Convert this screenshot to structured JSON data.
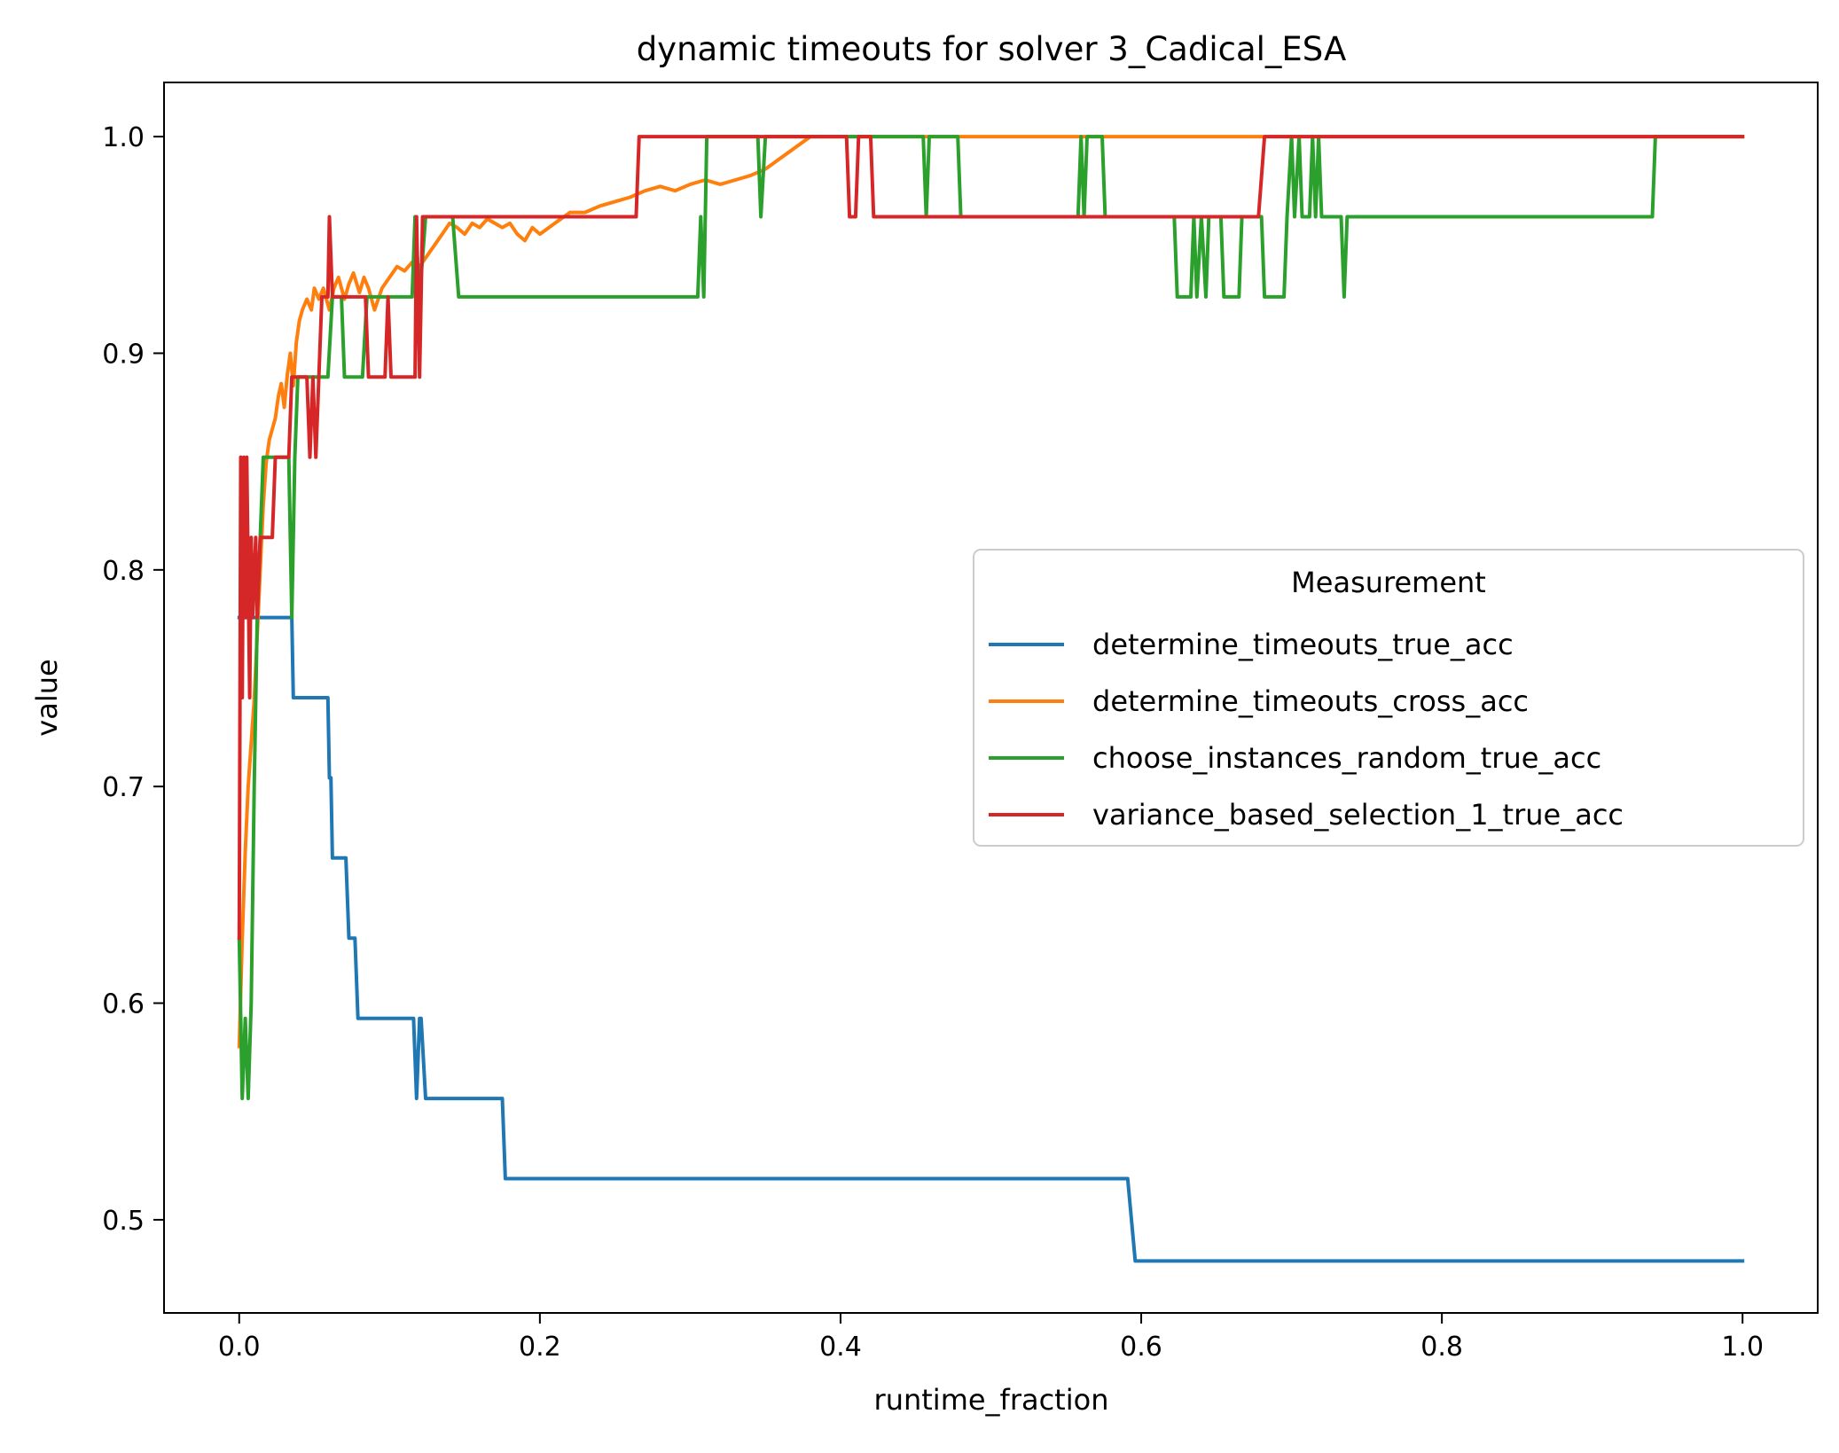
{
  "chart_data": {
    "type": "line",
    "title": "dynamic timeouts for solver 3_Cadical_ESA",
    "xlabel": "runtime_fraction",
    "ylabel": "value",
    "xlim": [
      -0.05,
      1.05
    ],
    "ylim": [
      0.457,
      1.025
    ],
    "xticks": [
      0.0,
      0.2,
      0.4,
      0.6,
      0.8,
      1.0
    ],
    "xtick_labels": [
      "0.0",
      "0.2",
      "0.4",
      "0.6",
      "0.8",
      "1.0"
    ],
    "yticks": [
      0.5,
      0.6,
      0.7,
      0.8,
      0.9,
      1.0
    ],
    "ytick_labels": [
      "0.5",
      "0.6",
      "0.7",
      "0.8",
      "0.9",
      "1.0"
    ],
    "grid": false,
    "legend": {
      "title": "Measurement",
      "position": "center-right"
    },
    "series": [
      {
        "name": "determine_timeouts_true_acc",
        "color": "#1f77b4",
        "points": [
          [
            0.0,
            0.778
          ],
          [
            0.035,
            0.778
          ],
          [
            0.036,
            0.741
          ],
          [
            0.059,
            0.741
          ],
          [
            0.06,
            0.704
          ],
          [
            0.061,
            0.704
          ],
          [
            0.062,
            0.667
          ],
          [
            0.071,
            0.667
          ],
          [
            0.073,
            0.63
          ],
          [
            0.077,
            0.63
          ],
          [
            0.079,
            0.593
          ],
          [
            0.116,
            0.593
          ],
          [
            0.118,
            0.556
          ],
          [
            0.12,
            0.593
          ],
          [
            0.121,
            0.593
          ],
          [
            0.124,
            0.556
          ],
          [
            0.175,
            0.556
          ],
          [
            0.177,
            0.519
          ],
          [
            0.591,
            0.519
          ],
          [
            0.596,
            0.481
          ],
          [
            1.0,
            0.481
          ]
        ]
      },
      {
        "name": "determine_timeouts_cross_acc",
        "color": "#ff7f0e",
        "points": [
          [
            0.0,
            0.58
          ],
          [
            0.002,
            0.63
          ],
          [
            0.004,
            0.67
          ],
          [
            0.006,
            0.7
          ],
          [
            0.008,
            0.72
          ],
          [
            0.01,
            0.74
          ],
          [
            0.012,
            0.77
          ],
          [
            0.014,
            0.8
          ],
          [
            0.016,
            0.83
          ],
          [
            0.018,
            0.85
          ],
          [
            0.02,
            0.86
          ],
          [
            0.022,
            0.865
          ],
          [
            0.024,
            0.87
          ],
          [
            0.026,
            0.88
          ],
          [
            0.028,
            0.886
          ],
          [
            0.03,
            0.875
          ],
          [
            0.032,
            0.89
          ],
          [
            0.034,
            0.9
          ],
          [
            0.036,
            0.885
          ],
          [
            0.038,
            0.905
          ],
          [
            0.04,
            0.915
          ],
          [
            0.042,
            0.92
          ],
          [
            0.045,
            0.925
          ],
          [
            0.048,
            0.92
          ],
          [
            0.05,
            0.93
          ],
          [
            0.053,
            0.925
          ],
          [
            0.056,
            0.93
          ],
          [
            0.06,
            0.92
          ],
          [
            0.063,
            0.93
          ],
          [
            0.066,
            0.935
          ],
          [
            0.07,
            0.925
          ],
          [
            0.073,
            0.932
          ],
          [
            0.076,
            0.937
          ],
          [
            0.08,
            0.928
          ],
          [
            0.083,
            0.935
          ],
          [
            0.086,
            0.93
          ],
          [
            0.09,
            0.92
          ],
          [
            0.095,
            0.93
          ],
          [
            0.1,
            0.935
          ],
          [
            0.105,
            0.94
          ],
          [
            0.11,
            0.938
          ],
          [
            0.115,
            0.942
          ],
          [
            0.12,
            0.94
          ],
          [
            0.125,
            0.945
          ],
          [
            0.13,
            0.95
          ],
          [
            0.135,
            0.955
          ],
          [
            0.14,
            0.96
          ],
          [
            0.145,
            0.958
          ],
          [
            0.15,
            0.955
          ],
          [
            0.155,
            0.96
          ],
          [
            0.16,
            0.958
          ],
          [
            0.165,
            0.962
          ],
          [
            0.17,
            0.96
          ],
          [
            0.175,
            0.958
          ],
          [
            0.18,
            0.96
          ],
          [
            0.185,
            0.955
          ],
          [
            0.19,
            0.952
          ],
          [
            0.195,
            0.958
          ],
          [
            0.2,
            0.955
          ],
          [
            0.21,
            0.96
          ],
          [
            0.22,
            0.965
          ],
          [
            0.23,
            0.965
          ],
          [
            0.24,
            0.968
          ],
          [
            0.25,
            0.97
          ],
          [
            0.26,
            0.972
          ],
          [
            0.27,
            0.975
          ],
          [
            0.28,
            0.977
          ],
          [
            0.29,
            0.975
          ],
          [
            0.3,
            0.978
          ],
          [
            0.31,
            0.98
          ],
          [
            0.32,
            0.978
          ],
          [
            0.33,
            0.98
          ],
          [
            0.34,
            0.982
          ],
          [
            0.35,
            0.985
          ],
          [
            0.36,
            0.99
          ],
          [
            0.37,
            0.995
          ],
          [
            0.38,
            1.0
          ],
          [
            1.0,
            1.0
          ]
        ]
      },
      {
        "name": "choose_instances_random_true_acc",
        "color": "#2ca02c",
        "points": [
          [
            0.0,
            0.63
          ],
          [
            0.002,
            0.556
          ],
          [
            0.004,
            0.593
          ],
          [
            0.006,
            0.556
          ],
          [
            0.008,
            0.6
          ],
          [
            0.01,
            0.7
          ],
          [
            0.012,
            0.778
          ],
          [
            0.014,
            0.815
          ],
          [
            0.016,
            0.852
          ],
          [
            0.033,
            0.852
          ],
          [
            0.035,
            0.778
          ],
          [
            0.037,
            0.852
          ],
          [
            0.039,
            0.889
          ],
          [
            0.059,
            0.889
          ],
          [
            0.062,
            0.926
          ],
          [
            0.068,
            0.926
          ],
          [
            0.07,
            0.889
          ],
          [
            0.082,
            0.889
          ],
          [
            0.085,
            0.926
          ],
          [
            0.115,
            0.926
          ],
          [
            0.117,
            0.963
          ],
          [
            0.12,
            0.926
          ],
          [
            0.124,
            0.963
          ],
          [
            0.142,
            0.963
          ],
          [
            0.146,
            0.926
          ],
          [
            0.305,
            0.926
          ],
          [
            0.307,
            0.963
          ],
          [
            0.309,
            0.926
          ],
          [
            0.311,
            1.0
          ],
          [
            0.345,
            1.0
          ],
          [
            0.347,
            0.963
          ],
          [
            0.35,
            1.0
          ],
          [
            0.455,
            1.0
          ],
          [
            0.457,
            0.963
          ],
          [
            0.459,
            1.0
          ],
          [
            0.478,
            1.0
          ],
          [
            0.48,
            0.963
          ],
          [
            0.558,
            0.963
          ],
          [
            0.56,
            1.0
          ],
          [
            0.562,
            0.963
          ],
          [
            0.564,
            1.0
          ],
          [
            0.574,
            1.0
          ],
          [
            0.576,
            0.963
          ],
          [
            0.622,
            0.963
          ],
          [
            0.624,
            0.926
          ],
          [
            0.633,
            0.926
          ],
          [
            0.635,
            0.963
          ],
          [
            0.637,
            0.926
          ],
          [
            0.64,
            0.963
          ],
          [
            0.643,
            0.926
          ],
          [
            0.645,
            0.963
          ],
          [
            0.653,
            0.963
          ],
          [
            0.655,
            0.926
          ],
          [
            0.665,
            0.926
          ],
          [
            0.667,
            0.963
          ],
          [
            0.68,
            0.963
          ],
          [
            0.682,
            0.926
          ],
          [
            0.695,
            0.926
          ],
          [
            0.697,
            0.963
          ],
          [
            0.7,
            1.0
          ],
          [
            0.702,
            0.963
          ],
          [
            0.705,
            1.0
          ],
          [
            0.707,
            0.963
          ],
          [
            0.712,
            0.963
          ],
          [
            0.714,
            1.0
          ],
          [
            0.716,
            0.963
          ],
          [
            0.718,
            1.0
          ],
          [
            0.72,
            0.963
          ],
          [
            0.733,
            0.963
          ],
          [
            0.735,
            0.926
          ],
          [
            0.737,
            0.963
          ],
          [
            0.94,
            0.963
          ],
          [
            0.942,
            1.0
          ],
          [
            1.0,
            1.0
          ]
        ]
      },
      {
        "name": "variance_based_selection_1_true_acc",
        "color": "#d62728",
        "points": [
          [
            0.0,
            0.63
          ],
          [
            0.001,
            0.852
          ],
          [
            0.002,
            0.741
          ],
          [
            0.003,
            0.852
          ],
          [
            0.004,
            0.778
          ],
          [
            0.005,
            0.852
          ],
          [
            0.007,
            0.741
          ],
          [
            0.008,
            0.815
          ],
          [
            0.009,
            0.778
          ],
          [
            0.011,
            0.815
          ],
          [
            0.012,
            0.778
          ],
          [
            0.014,
            0.815
          ],
          [
            0.022,
            0.815
          ],
          [
            0.024,
            0.852
          ],
          [
            0.033,
            0.852
          ],
          [
            0.035,
            0.889
          ],
          [
            0.045,
            0.889
          ],
          [
            0.047,
            0.852
          ],
          [
            0.049,
            0.889
          ],
          [
            0.051,
            0.852
          ],
          [
            0.053,
            0.889
          ],
          [
            0.055,
            0.926
          ],
          [
            0.059,
            0.926
          ],
          [
            0.06,
            0.963
          ],
          [
            0.062,
            0.926
          ],
          [
            0.084,
            0.926
          ],
          [
            0.086,
            0.889
          ],
          [
            0.097,
            0.889
          ],
          [
            0.099,
            0.926
          ],
          [
            0.101,
            0.889
          ],
          [
            0.117,
            0.889
          ],
          [
            0.118,
            0.963
          ],
          [
            0.12,
            0.889
          ],
          [
            0.122,
            0.963
          ],
          [
            0.264,
            0.963
          ],
          [
            0.266,
            1.0
          ],
          [
            0.404,
            1.0
          ],
          [
            0.406,
            0.963
          ],
          [
            0.41,
            0.963
          ],
          [
            0.412,
            1.0
          ],
          [
            0.42,
            1.0
          ],
          [
            0.422,
            0.963
          ],
          [
            0.678,
            0.963
          ],
          [
            0.682,
            1.0
          ],
          [
            1.0,
            1.0
          ]
        ]
      }
    ]
  }
}
